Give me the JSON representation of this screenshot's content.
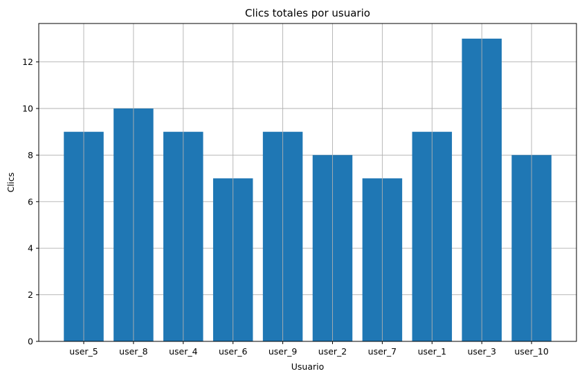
{
  "chart_data": {
    "type": "bar",
    "title": "Clics totales por usuario",
    "xlabel": "Usuario",
    "ylabel": "Clics",
    "categories": [
      "user_5",
      "user_8",
      "user_4",
      "user_6",
      "user_9",
      "user_2",
      "user_7",
      "user_1",
      "user_3",
      "user_10"
    ],
    "values": [
      9,
      10,
      9,
      7,
      9,
      8,
      7,
      9,
      13,
      8
    ],
    "ylim": [
      0,
      13.65
    ],
    "yticks": [
      0,
      2,
      4,
      6,
      8,
      10,
      12
    ],
    "grid": true,
    "bar_color": "#1f77b4",
    "grid_color": "#b0b0b0",
    "legend": "none"
  }
}
